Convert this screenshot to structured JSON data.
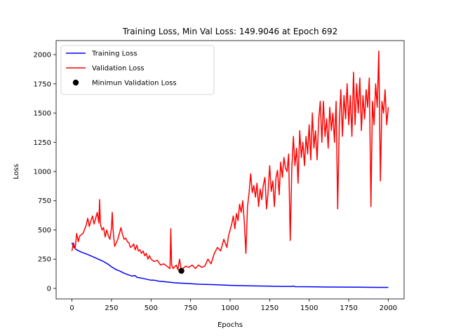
{
  "chart_data": {
    "type": "line",
    "title": "Training Loss, Min Val Loss: 149.9046 at Epoch 692",
    "xlabel": "Epochs",
    "ylabel": "Loss",
    "xlim": [
      -100,
      2100
    ],
    "ylim": [
      -90,
      2120
    ],
    "xticks": [
      0,
      250,
      500,
      750,
      1000,
      1250,
      1500,
      1750,
      2000
    ],
    "yticks": [
      0,
      250,
      500,
      750,
      1000,
      1250,
      1500,
      1750,
      2000
    ],
    "grid": false,
    "legend": {
      "position": "top-left",
      "entries": [
        {
          "label": "Training Loss",
          "kind": "line",
          "color": "#0000ff"
        },
        {
          "label": "Validation Loss",
          "kind": "line",
          "color": "#ff0000"
        },
        {
          "label": "Minimun Validation Loss",
          "kind": "marker",
          "color": "#000000"
        }
      ]
    },
    "series": [
      {
        "name": "Training Loss",
        "color": "#0000ff",
        "points": [
          [
            0,
            390
          ],
          [
            10,
            355
          ],
          [
            30,
            330
          ],
          [
            60,
            310
          ],
          [
            100,
            290
          ],
          [
            150,
            260
          ],
          [
            200,
            230
          ],
          [
            230,
            205
          ],
          [
            250,
            185
          ],
          [
            280,
            160
          ],
          [
            300,
            150
          ],
          [
            330,
            130
          ],
          [
            360,
            115
          ],
          [
            380,
            105
          ],
          [
            400,
            110
          ],
          [
            410,
            95
          ],
          [
            450,
            85
          ],
          [
            500,
            70
          ],
          [
            520,
            70
          ],
          [
            550,
            62
          ],
          [
            600,
            55
          ],
          [
            650,
            48
          ],
          [
            700,
            44
          ],
          [
            750,
            40
          ],
          [
            800,
            36
          ],
          [
            900,
            32
          ],
          [
            1000,
            26
          ],
          [
            1100,
            22
          ],
          [
            1200,
            20
          ],
          [
            1300,
            17
          ],
          [
            1390,
            16
          ],
          [
            1400,
            20
          ],
          [
            1410,
            15
          ],
          [
            1500,
            14
          ],
          [
            1600,
            12
          ],
          [
            1700,
            11
          ],
          [
            1800,
            10
          ],
          [
            1900,
            9
          ],
          [
            2000,
            8
          ]
        ]
      },
      {
        "name": "Validation Loss",
        "color": "#ff0000",
        "points": [
          [
            0,
            320
          ],
          [
            10,
            390
          ],
          [
            20,
            340
          ],
          [
            30,
            470
          ],
          [
            40,
            400
          ],
          [
            50,
            450
          ],
          [
            70,
            470
          ],
          [
            90,
            540
          ],
          [
            100,
            600
          ],
          [
            110,
            530
          ],
          [
            120,
            580
          ],
          [
            130,
            620
          ],
          [
            140,
            550
          ],
          [
            150,
            600
          ],
          [
            160,
            650
          ],
          [
            170,
            560
          ],
          [
            175,
            760
          ],
          [
            180,
            550
          ],
          [
            190,
            500
          ],
          [
            200,
            520
          ],
          [
            210,
            440
          ],
          [
            220,
            500
          ],
          [
            230,
            450
          ],
          [
            240,
            420
          ],
          [
            250,
            520
          ],
          [
            255,
            650
          ],
          [
            260,
            500
          ],
          [
            270,
            360
          ],
          [
            280,
            390
          ],
          [
            290,
            420
          ],
          [
            300,
            470
          ],
          [
            310,
            520
          ],
          [
            320,
            460
          ],
          [
            330,
            420
          ],
          [
            340,
            430
          ],
          [
            350,
            400
          ],
          [
            360,
            390
          ],
          [
            370,
            350
          ],
          [
            380,
            360
          ],
          [
            390,
            380
          ],
          [
            400,
            330
          ],
          [
            410,
            370
          ],
          [
            420,
            320
          ],
          [
            430,
            330
          ],
          [
            440,
            300
          ],
          [
            450,
            320
          ],
          [
            460,
            280
          ],
          [
            470,
            300
          ],
          [
            480,
            250
          ],
          [
            490,
            280
          ],
          [
            500,
            250
          ],
          [
            520,
            230
          ],
          [
            540,
            240
          ],
          [
            560,
            200
          ],
          [
            580,
            210
          ],
          [
            600,
            190
          ],
          [
            620,
            170
          ],
          [
            625,
            510
          ],
          [
            630,
            200
          ],
          [
            640,
            170
          ],
          [
            660,
            200
          ],
          [
            670,
            160
          ],
          [
            680,
            250
          ],
          [
            692,
            150
          ],
          [
            700,
            170
          ],
          [
            720,
            190
          ],
          [
            740,
            180
          ],
          [
            760,
            200
          ],
          [
            780,
            170
          ],
          [
            800,
            200
          ],
          [
            820,
            180
          ],
          [
            840,
            190
          ],
          [
            860,
            250
          ],
          [
            880,
            210
          ],
          [
            900,
            300
          ],
          [
            920,
            350
          ],
          [
            940,
            320
          ],
          [
            960,
            420
          ],
          [
            980,
            350
          ],
          [
            990,
            450
          ],
          [
            1000,
            500
          ],
          [
            1010,
            550
          ],
          [
            1020,
            620
          ],
          [
            1030,
            510
          ],
          [
            1040,
            640
          ],
          [
            1050,
            580
          ],
          [
            1060,
            720
          ],
          [
            1070,
            650
          ],
          [
            1080,
            750
          ],
          [
            1090,
            560
          ],
          [
            1100,
            300
          ],
          [
            1110,
            700
          ],
          [
            1120,
            820
          ],
          [
            1130,
            980
          ],
          [
            1140,
            820
          ],
          [
            1150,
            880
          ],
          [
            1160,
            780
          ],
          [
            1170,
            900
          ],
          [
            1180,
            700
          ],
          [
            1190,
            850
          ],
          [
            1200,
            760
          ],
          [
            1210,
            880
          ],
          [
            1220,
            950
          ],
          [
            1230,
            680
          ],
          [
            1240,
            820
          ],
          [
            1250,
            1050
          ],
          [
            1260,
            830
          ],
          [
            1270,
            920
          ],
          [
            1280,
            700
          ],
          [
            1290,
            950
          ],
          [
            1300,
            1010
          ],
          [
            1310,
            800
          ],
          [
            1320,
            1080
          ],
          [
            1330,
            950
          ],
          [
            1340,
            1120
          ],
          [
            1350,
            1030
          ],
          [
            1360,
            1000
          ],
          [
            1370,
            1150
          ],
          [
            1380,
            410
          ],
          [
            1390,
            1020
          ],
          [
            1400,
            1300
          ],
          [
            1410,
            1050
          ],
          [
            1420,
            1200
          ],
          [
            1430,
            900
          ],
          [
            1440,
            1350
          ],
          [
            1450,
            1120
          ],
          [
            1460,
            1250
          ],
          [
            1470,
            1050
          ],
          [
            1480,
            1300
          ],
          [
            1490,
            1150
          ],
          [
            1500,
            1400
          ],
          [
            1510,
            1100
          ],
          [
            1520,
            1500
          ],
          [
            1530,
            1200
          ],
          [
            1540,
            1350
          ],
          [
            1550,
            1100
          ],
          [
            1560,
            1450
          ],
          [
            1570,
            1600
          ],
          [
            1580,
            1250
          ],
          [
            1590,
            1600
          ],
          [
            1600,
            1300
          ],
          [
            1610,
            1450
          ],
          [
            1620,
            1200
          ],
          [
            1630,
            1550
          ],
          [
            1640,
            1350
          ],
          [
            1650,
            1500
          ],
          [
            1660,
            1250
          ],
          [
            1670,
            1600
          ],
          [
            1680,
            680
          ],
          [
            1690,
            1400
          ],
          [
            1700,
            1700
          ],
          [
            1710,
            1300
          ],
          [
            1720,
            1650
          ],
          [
            1730,
            1450
          ],
          [
            1740,
            1750
          ],
          [
            1750,
            1400
          ],
          [
            1760,
            1650
          ],
          [
            1770,
            1300
          ],
          [
            1780,
            1850
          ],
          [
            1790,
            1400
          ],
          [
            1800,
            1750
          ],
          [
            1810,
            1500
          ],
          [
            1820,
            1800
          ],
          [
            1830,
            1350
          ],
          [
            1840,
            1650
          ],
          [
            1850,
            1450
          ],
          [
            1860,
            1700
          ],
          [
            1870,
            1550
          ],
          [
            1880,
            1800
          ],
          [
            1890,
            700
          ],
          [
            1900,
            1600
          ],
          [
            1910,
            1400
          ],
          [
            1920,
            1750
          ],
          [
            1930,
            1550
          ],
          [
            1940,
            2030
          ],
          [
            1950,
            920
          ],
          [
            1960,
            1600
          ],
          [
            1970,
            1500
          ],
          [
            1980,
            1700
          ],
          [
            1990,
            1400
          ],
          [
            2000,
            1550
          ]
        ]
      }
    ],
    "markers": [
      {
        "name": "Minimun Validation Loss",
        "x": 692,
        "y": 149.9046,
        "color": "#000000"
      }
    ]
  }
}
